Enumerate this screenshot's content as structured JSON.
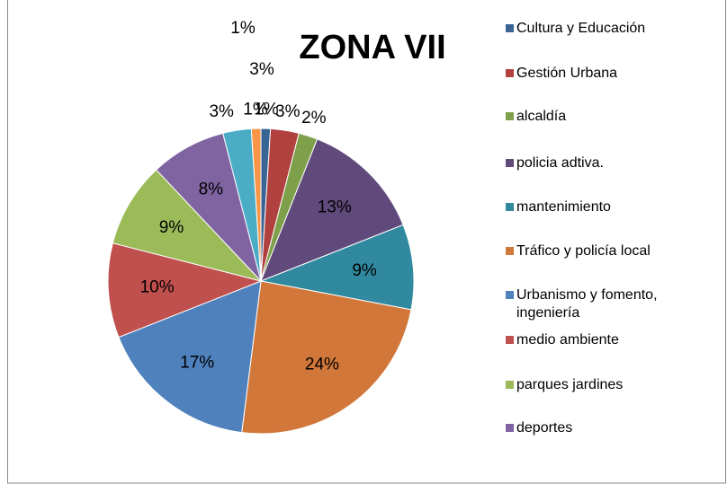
{
  "chart_data": {
    "type": "pie",
    "title": "ZONA VII",
    "categories": [
      "Cultura y Educación",
      "Gestión Urbana",
      "alcaldía",
      "policia adtiva.",
      "mantenimiento",
      "Tráfico y policía  local",
      "Urbanismo y fomento, ingeniería",
      "medio ambiente",
      "parques jardines",
      "deportes",
      null,
      null
    ],
    "values": [
      1,
      3,
      2,
      13,
      9,
      24,
      17,
      10,
      9,
      8,
      3,
      1
    ],
    "value_labels": [
      "1%",
      "3%",
      "2%",
      "13%",
      "9%",
      "24%",
      "17%",
      "10%",
      "9%",
      "8%",
      "3%",
      "1%"
    ],
    "colors": [
      "#3A6494",
      "#B0413E",
      "#7FA04A",
      "#604A7B",
      "#31899F",
      "#D2773A",
      "#4F81BD",
      "#C0504D",
      "#9BBB59",
      "#8064A2",
      "#4BACC6",
      "#F79646"
    ],
    "annotations": [
      "1%",
      "3%"
    ]
  }
}
